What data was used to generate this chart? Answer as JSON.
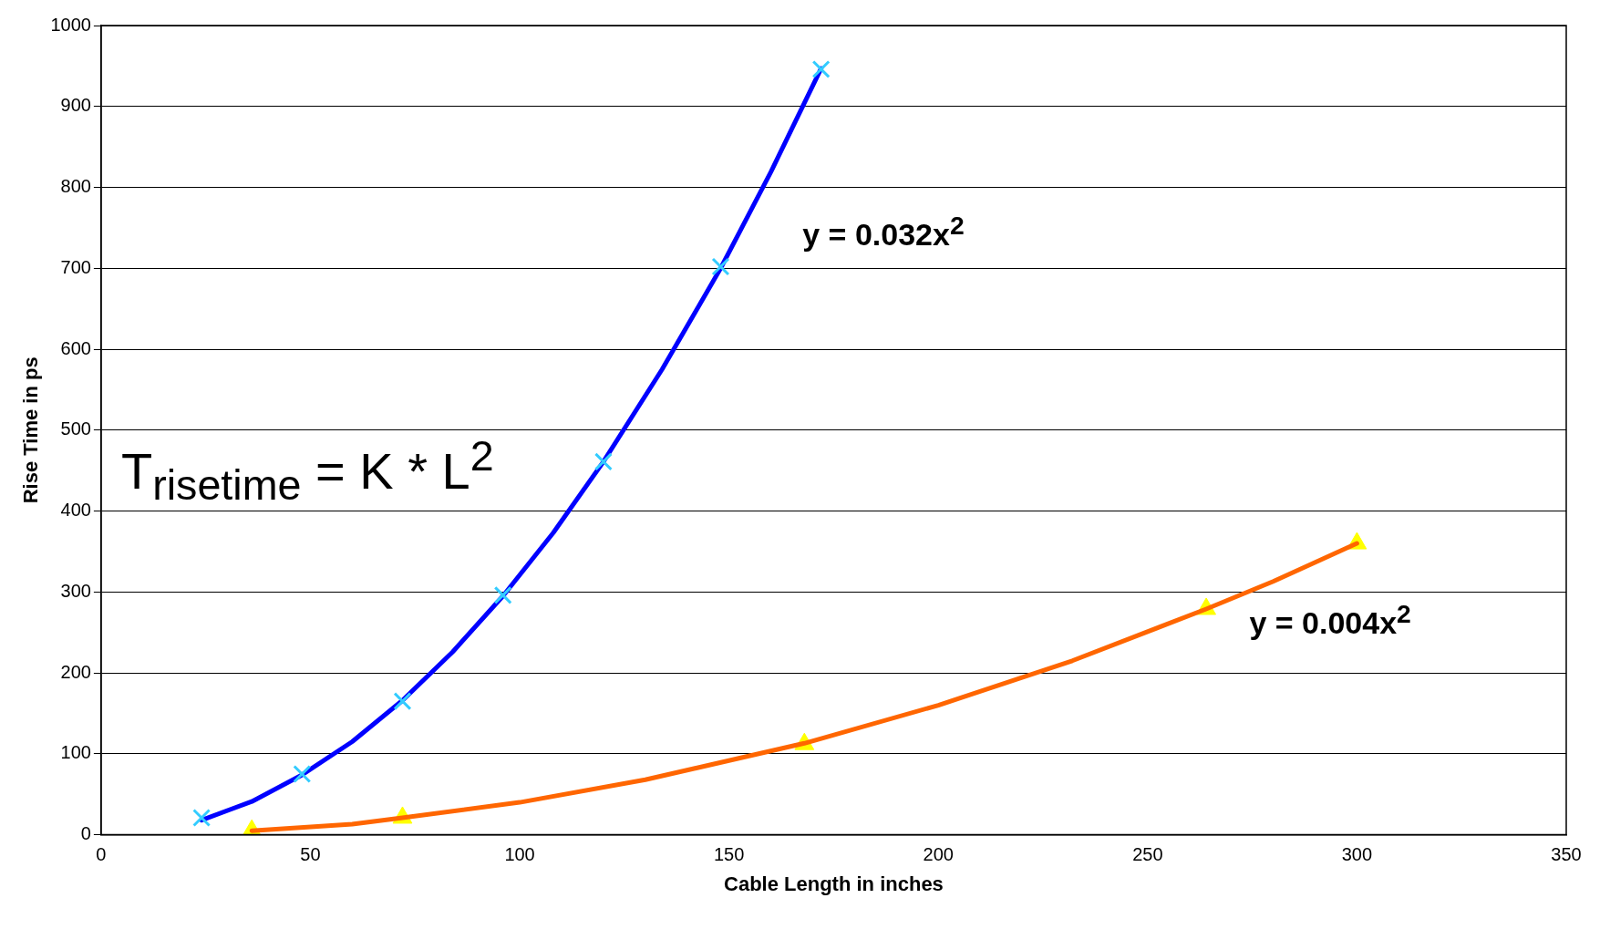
{
  "chart_data": {
    "type": "line",
    "xlabel": "Cable Length in inches",
    "ylabel": "Rise Time in ps",
    "xlim": [
      0,
      350
    ],
    "xticks": [
      0,
      50,
      100,
      150,
      200,
      250,
      300,
      350
    ],
    "ylim": [
      0,
      1000
    ],
    "yticks": [
      0,
      100,
      200,
      300,
      400,
      500,
      600,
      700,
      800,
      900,
      1000
    ],
    "grid": "y",
    "legend": false,
    "series": [
      {
        "marker": "none",
        "color": "#0000ff",
        "x": [
          24,
          36,
          48,
          60,
          72,
          84,
          96,
          108,
          120,
          134,
          148,
          160,
          172
        ],
        "values": [
          18,
          41,
          74,
          115,
          166,
          226,
          295,
          373,
          461,
          575,
          700,
          819,
          947
        ]
      },
      {
        "marker": "none",
        "color": "#ff6600",
        "x": [
          36,
          60,
          72,
          100,
          130,
          168,
          200,
          232,
          264,
          280,
          300
        ],
        "values": [
          5,
          13,
          21,
          40,
          68,
          113,
          160,
          215,
          279,
          313,
          360
        ]
      },
      {
        "type": "scatter",
        "marker": "cross",
        "color": "#33ccff",
        "x": [
          24,
          48,
          72,
          96,
          120,
          148,
          172
        ],
        "values": [
          21,
          75,
          165,
          296,
          461,
          702,
          946
        ]
      },
      {
        "type": "scatter",
        "marker": "triangle",
        "color": "#ffff00",
        "x": [
          36,
          72,
          168,
          264,
          300
        ],
        "values": [
          5,
          21,
          112,
          279,
          360
        ]
      }
    ],
    "annotations": [
      "y = 0.032x$^{2}$",
      "y = 0.004x$^{2}$",
      "T$_{risetime}$ = K * L$^{2}$"
    ]
  }
}
